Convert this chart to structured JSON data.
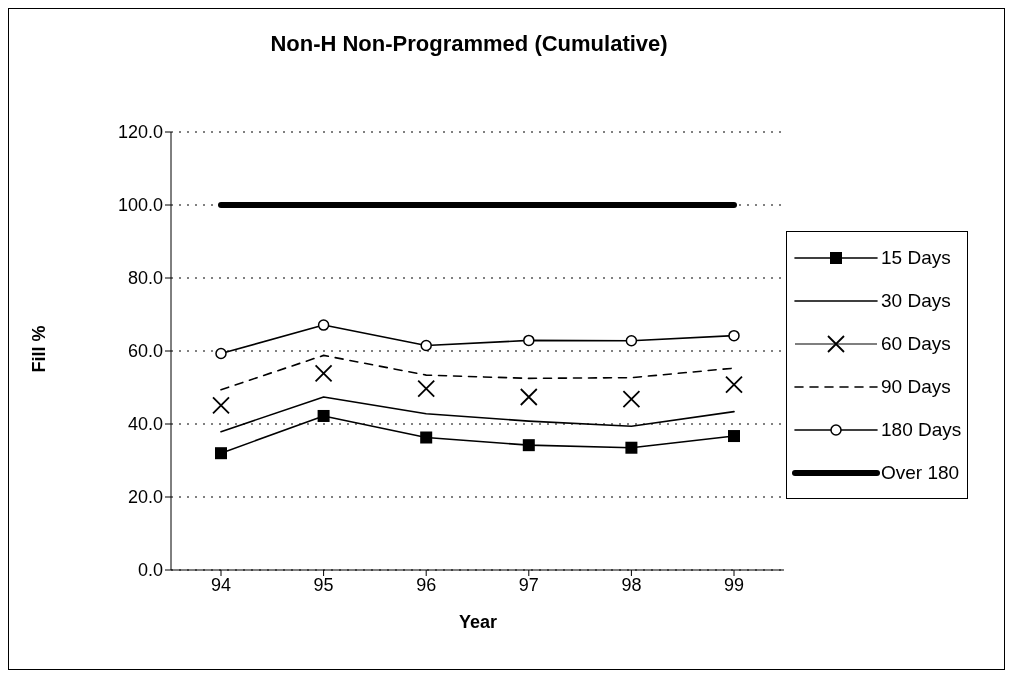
{
  "chart_data": {
    "type": "line",
    "title": "Non-H Non-Programmed (Cumulative)",
    "xlabel": "Year",
    "ylabel": "Fill %",
    "categories": [
      "94",
      "95",
      "96",
      "97",
      "98",
      "99"
    ],
    "series": [
      {
        "name": "15 Days",
        "color": "#000000",
        "marker": "square",
        "line_style": "solid",
        "values": [
          32.0,
          42.2,
          36.3,
          34.2,
          33.5,
          36.7
        ]
      },
      {
        "name": "30 Days",
        "color": "#000000",
        "marker": "none",
        "line_style": "solid",
        "values": [
          37.9,
          47.4,
          42.8,
          40.8,
          39.4,
          43.4
        ]
      },
      {
        "name": "60 Days",
        "type": "scatter",
        "color": "#000000",
        "marker": "cross",
        "values": [
          45.1,
          53.9,
          49.7,
          47.4,
          46.8,
          50.8
        ]
      },
      {
        "name": "90 Days",
        "color": "#000000",
        "marker": "none",
        "line_style": "dashed",
        "values": [
          49.4,
          58.8,
          53.4,
          52.5,
          52.7,
          55.3
        ]
      },
      {
        "name": "180 Days",
        "color": "#000000",
        "marker": "circle",
        "line_style": "solid",
        "values": [
          59.3,
          67.1,
          61.5,
          62.9,
          62.8,
          64.2
        ]
      },
      {
        "name": "Over 180",
        "color": "#000000",
        "marker": "none",
        "line_style": "solid",
        "values": [
          100,
          100,
          100,
          100,
          100,
          100
        ]
      }
    ],
    "ylim": [
      0,
      120
    ],
    "yticks": [
      {
        "value": 0,
        "label": "0.0"
      },
      {
        "value": 20,
        "label": "20.0"
      },
      {
        "value": 40,
        "label": "40.0"
      },
      {
        "value": 60,
        "label": "60.0"
      },
      {
        "value": 80,
        "label": "80.0"
      },
      {
        "value": 100,
        "label": "100.0"
      },
      {
        "value": 120,
        "label": "120.0"
      }
    ],
    "grid": "y",
    "legend": "right"
  }
}
